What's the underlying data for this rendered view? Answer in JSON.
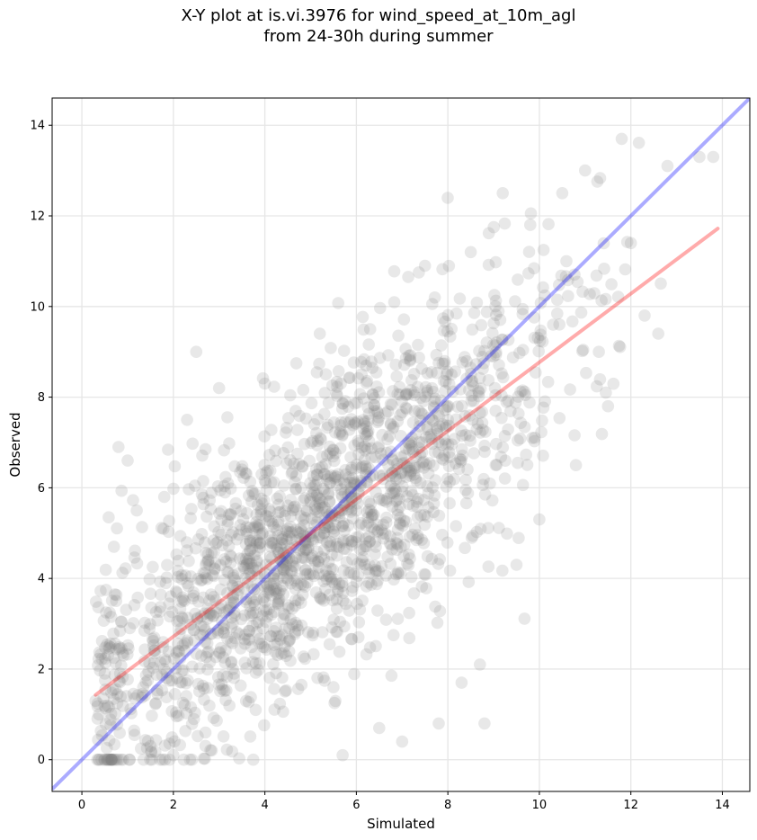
{
  "title": {
    "line1": "X-Y plot at is.vi.3976 for wind_speed_at_10m_agl",
    "line2": "from 24-30h during summer"
  },
  "chart_data": {
    "type": "scatter",
    "title": "X-Y plot at is.vi.3976 for wind_speed_at_10m_agl from 24-30h during summer",
    "xlabel": "Simulated",
    "ylabel": "Observed",
    "xlim": [
      -0.65,
      14.6
    ],
    "ylim": [
      -0.7,
      14.6
    ],
    "xticks": [
      0,
      2,
      4,
      6,
      8,
      10,
      12,
      14
    ],
    "yticks": [
      0,
      2,
      4,
      6,
      8,
      10,
      12,
      14
    ],
    "grid": true,
    "colors": {
      "points": "#808080",
      "identity_line": "#0000ff",
      "fit_line": "#ff0000"
    },
    "identity_line": {
      "x": [
        -0.65,
        14.6
      ],
      "y": [
        -0.65,
        14.6
      ]
    },
    "fit_line": {
      "x": [
        0.3,
        13.9
      ],
      "y": [
        1.43,
        11.72
      ]
    },
    "point_cloud": {
      "description_of_distribution": "approx. 2000 translucent grey markers scattered along the identity diagonal",
      "sample_points": [
        [
          0.3,
          1.3
        ],
        [
          0.5,
          1.9
        ],
        [
          0.7,
          4.7
        ],
        [
          0.8,
          6.9
        ],
        [
          1.0,
          6.6
        ],
        [
          1.2,
          5.5
        ],
        [
          1.5,
          0.3
        ],
        [
          1.8,
          5.8
        ],
        [
          2.0,
          0.1
        ],
        [
          2.3,
          7.5
        ],
        [
          2.5,
          9.0
        ],
        [
          2.7,
          0.6
        ],
        [
          3.0,
          8.2
        ],
        [
          3.3,
          2.0
        ],
        [
          3.5,
          6.4
        ],
        [
          3.8,
          1.1
        ],
        [
          4.0,
          8.3
        ],
        [
          4.3,
          3.5
        ],
        [
          4.6,
          4.4
        ],
        [
          5.0,
          5.0
        ],
        [
          5.2,
          9.4
        ],
        [
          5.5,
          1.6
        ],
        [
          5.7,
          0.1
        ],
        [
          6.0,
          5.5
        ],
        [
          6.3,
          9.5
        ],
        [
          6.5,
          0.7
        ],
        [
          6.8,
          6.6
        ],
        [
          7.0,
          0.4
        ],
        [
          7.3,
          7.2
        ],
        [
          7.5,
          10.9
        ],
        [
          7.8,
          0.8
        ],
        [
          8.0,
          7.5
        ],
        [
          8.3,
          1.7
        ],
        [
          8.5,
          11.2
        ],
        [
          8.7,
          2.1
        ],
        [
          8.8,
          0.8
        ],
        [
          9.0,
          8.9
        ],
        [
          9.2,
          12.5
        ],
        [
          9.5,
          4.3
        ],
        [
          9.8,
          11.8
        ],
        [
          10.0,
          5.3
        ],
        [
          10.3,
          9.6
        ],
        [
          10.5,
          12.5
        ],
        [
          10.8,
          6.5
        ],
        [
          11.0,
          13.0
        ],
        [
          11.3,
          9.0
        ],
        [
          11.5,
          7.8
        ],
        [
          11.8,
          13.7
        ],
        [
          12.0,
          11.4
        ],
        [
          12.3,
          9.8
        ],
        [
          12.6,
          9.4
        ],
        [
          12.8,
          13.1
        ],
        [
          13.5,
          13.3
        ],
        [
          13.8,
          13.3
        ]
      ]
    }
  }
}
